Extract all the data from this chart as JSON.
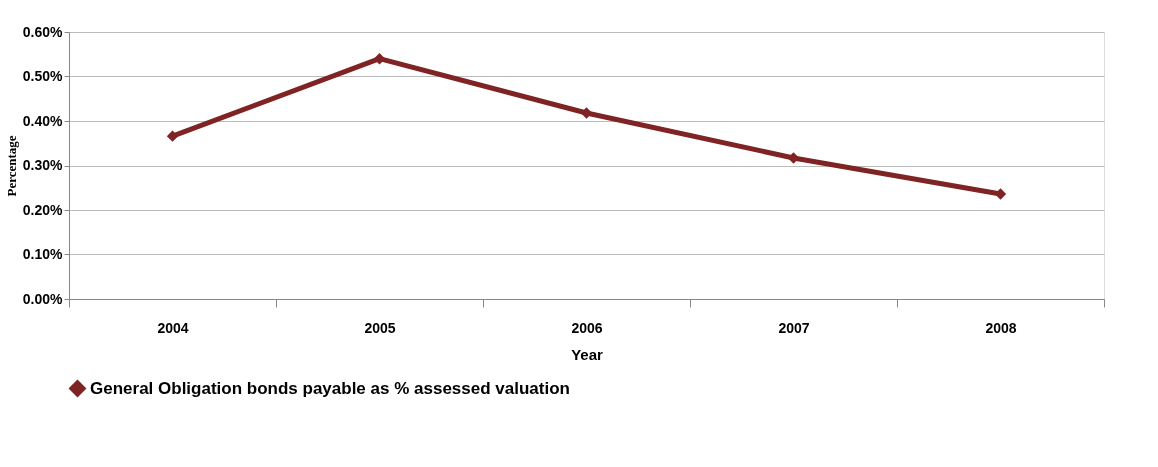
{
  "chart_data": {
    "type": "line",
    "xlabel": "Year",
    "ylabel": "Percentage",
    "categories": [
      "2004",
      "2005",
      "2006",
      "2007",
      "2008"
    ],
    "series": [
      {
        "name": "General Obligation bonds payable as % assessed  valuation",
        "color": "#7f2324",
        "values": [
          0.366,
          0.54,
          0.418,
          0.317,
          0.236
        ]
      }
    ],
    "ylim": [
      0,
      0.6
    ],
    "yticks": [
      {
        "value": 0,
        "label": "0.00%"
      },
      {
        "value": 0.1,
        "label": "0.10%"
      },
      {
        "value": 0.2,
        "label": "0.20%"
      },
      {
        "value": 0.3,
        "label": "0.30%"
      },
      {
        "value": 0.4,
        "label": "0.40%"
      },
      {
        "value": 0.5,
        "label": "0.50%"
      },
      {
        "value": 0.6,
        "label": "0.60%"
      }
    ],
    "grid": "y",
    "legend": "bottom",
    "marker": "diamond",
    "line_style": "solid"
  }
}
